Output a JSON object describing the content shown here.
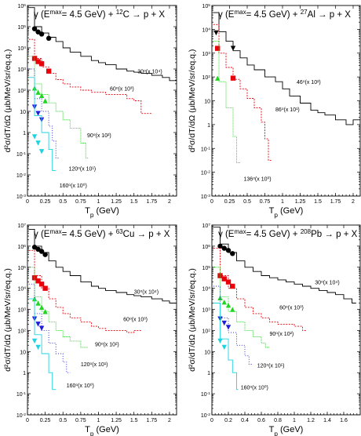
{
  "colors": {
    "c30": "#000000",
    "c60": "#e8000b",
    "c90": "#21d621",
    "c120": "#1f1fd9",
    "c160": "#1fd3e0",
    "frame": "#000000"
  },
  "chart_data": [
    {
      "type": "line",
      "title_prefix": "γ (E",
      "title_sup1": "max",
      "title_mid": "= 4.5 GeV) + ",
      "title_sup2": "12",
      "title_suffix": "C → p + X",
      "xlabel_main": "T",
      "xlabel_sub": "p",
      "xlabel_unit": " (GeV)",
      "ylabel": "d²σ/dT/dΩ (μb/MeV/sr/eq.q.)",
      "xlim": [
        0,
        2.1
      ],
      "ylim_exp": [
        -3,
        6
      ],
      "log_y": true,
      "xticks": [
        "0",
        "0.25",
        "0.5",
        "0.75",
        "1",
        "1.25",
        "1.5",
        "1.75",
        "2"
      ],
      "series": [
        {
          "name": "30",
          "scale": "(x 10⁴)",
          "color_key": "c30",
          "dash": "",
          "ann_x": 1.55,
          "ann_y": 2.8,
          "x": [
            0.02,
            0.1,
            0.2,
            0.3,
            0.4,
            0.5,
            0.6,
            0.75,
            0.9,
            1.0,
            1.1,
            1.25,
            1.4,
            1.5,
            1.6,
            1.75,
            1.9,
            2.0,
            2.1
          ],
          "y": [
            5.9,
            5.0,
            4.7,
            4.5,
            4.3,
            4.0,
            3.8,
            3.6,
            3.4,
            3.3,
            3.2,
            3.0,
            2.9,
            2.85,
            2.8,
            2.7,
            2.6,
            2.45,
            2.3
          ],
          "mx": [
            0.1,
            0.15,
            0.2,
            0.3
          ],
          "my": [
            4.9,
            4.75,
            4.65,
            4.45
          ],
          "marker": "circle"
        },
        {
          "name": "60",
          "scale": "(x 10³)",
          "color_key": "c60",
          "dash": "2,1.5",
          "ann_x": 1.16,
          "ann_y": 1.98,
          "x": [
            0.02,
            0.1,
            0.2,
            0.3,
            0.4,
            0.5,
            0.6,
            0.75,
            0.9,
            1.0,
            1.1,
            1.25,
            1.4,
            1.5,
            1.6,
            1.75
          ],
          "y": [
            4.4,
            3.5,
            3.1,
            2.8,
            2.5,
            2.3,
            2.15,
            2.0,
            1.9,
            1.9,
            1.8,
            1.8,
            1.6,
            1.5,
            0.9,
            0.4
          ],
          "mx": [
            0.1,
            0.15,
            0.2,
            0.3
          ],
          "my": [
            3.5,
            3.35,
            3.25,
            2.9
          ],
          "marker": "square"
        },
        {
          "name": "90",
          "scale": "(x 10²)",
          "color_key": "c90",
          "dash": "1,1",
          "ann_x": 0.84,
          "ann_y": -0.22,
          "x": [
            0.02,
            0.1,
            0.2,
            0.3,
            0.4,
            0.5,
            0.6,
            0.75,
            0.82,
            0.86
          ],
          "y": [
            3.6,
            2.3,
            1.8,
            1.4,
            1.0,
            0.6,
            0.2,
            -0.5,
            -1.2,
            -2.0
          ],
          "mx": [
            0.1,
            0.15,
            0.2,
            0.25
          ],
          "my": [
            2.1,
            1.9,
            1.75,
            1.5
          ],
          "marker": "triangle"
        },
        {
          "name": "120",
          "scale": "(x 10¹)",
          "color_key": "c120",
          "dash": "1,2",
          "ann_x": 0.58,
          "ann_y": -1.8,
          "x": [
            0.02,
            0.1,
            0.2,
            0.3,
            0.35,
            0.4,
            0.45
          ],
          "y": [
            3.0,
            1.6,
            1.0,
            0.3,
            -0.4,
            -1.2,
            -2.2
          ],
          "mx": [
            0.1,
            0.15,
            0.2
          ],
          "my": [
            1.2,
            0.9,
            0.6
          ],
          "marker": "triangledown"
        },
        {
          "name": "160",
          "scale": "(x 10⁰)",
          "color_key": "c160",
          "dash": "",
          "ann_x": 0.45,
          "ann_y": -2.6,
          "x": [
            0.02,
            0.1,
            0.2,
            0.3,
            0.35,
            0.4
          ],
          "y": [
            2.6,
            0.8,
            0.0,
            -0.8,
            -1.8,
            -2.9
          ],
          "mx": [
            0.1,
            0.15,
            0.2
          ],
          "my": [
            -0.2,
            -0.5,
            -0.9
          ],
          "marker": "triangledown"
        }
      ]
    },
    {
      "type": "line",
      "title_prefix": "γ (E",
      "title_sup1": "max",
      "title_mid": "= 4.5 GeV) + ",
      "title_sup2": "27",
      "title_suffix": "Al → p + X",
      "xlabel_main": "T",
      "xlabel_sub": "p",
      "xlabel_unit": " (GeV)",
      "ylabel": "d²σ/dT/dΩ (μb/MeV/sr/eq.q.)",
      "xlim": [
        0,
        2.1
      ],
      "ylim_exp": [
        -3,
        5
      ],
      "log_y": true,
      "xticks": [
        "0",
        "0.25",
        "0.5",
        "0.75",
        "1",
        "1.25",
        "1.5",
        "1.75",
        "2"
      ],
      "series": [
        {
          "name": "46",
          "scale": "(x 10²)",
          "color_key": "c30",
          "dash": "",
          "ann_x": 1.2,
          "ann_y": 1.7,
          "x": [
            0.02,
            0.1,
            0.2,
            0.3,
            0.4,
            0.5,
            0.6,
            0.75,
            0.9,
            1.0,
            1.1,
            1.25,
            1.4,
            1.5,
            1.6,
            1.75,
            1.9,
            2.0,
            2.1
          ],
          "y": [
            4.7,
            3.9,
            3.5,
            3.1,
            2.8,
            2.5,
            2.3,
            2.0,
            1.8,
            1.5,
            1.2,
            0.9,
            0.6,
            0.5,
            0.4,
            0.2,
            0.0,
            0.2,
            0.3
          ],
          "mx": [
            0.06,
            0.3
          ],
          "my": [
            3.85,
            3.2
          ],
          "marker": "triangledown"
        },
        {
          "name": "86",
          "scale": "(x 10¹)",
          "color_key": "c60",
          "dash": "2,1.5",
          "ann_x": 0.9,
          "ann_y": 0.55,
          "x": [
            0.02,
            0.1,
            0.2,
            0.3,
            0.4,
            0.5,
            0.6,
            0.7,
            0.75,
            0.8,
            0.85
          ],
          "y": [
            4.2,
            3.0,
            2.4,
            1.9,
            1.5,
            1.1,
            0.7,
            0.1,
            -0.6,
            -1.5,
            -3.0
          ],
          "mx": [
            0.08,
            0.3
          ],
          "my": [
            3.2,
            1.95
          ],
          "marker": "square"
        },
        {
          "name": "136",
          "scale": "(x 10⁰)",
          "color_key": "c90",
          "dash": "1,1",
          "ann_x": 0.45,
          "ann_y": -2.35,
          "x": [
            0.02,
            0.1,
            0.2,
            0.3,
            0.35,
            0.4
          ],
          "y": [
            3.5,
            1.8,
            0.7,
            -0.5,
            -1.6,
            -3.0
          ],
          "mx": [
            0.08
          ],
          "my": [
            1.95
          ],
          "marker": "triangle"
        }
      ]
    },
    {
      "type": "line",
      "title_prefix": "γ (E",
      "title_sup1": "max",
      "title_mid": "= 4.5 GeV) + ",
      "title_sup2": "63",
      "title_suffix": "Cu → p + X",
      "xlabel_main": "T",
      "xlabel_sub": "p",
      "xlabel_unit": " (GeV)",
      "ylabel": "d²σ/dT/dΩ (μb/MeV/sr/eq.q.)",
      "xlim": [
        0,
        2.1
      ],
      "ylim_exp": [
        -2,
        7
      ],
      "log_y": true,
      "xticks": [
        "0",
        "0.25",
        "0.5",
        "0.75",
        "1",
        "1.25",
        "1.5",
        "1.75",
        "2"
      ],
      "series": [
        {
          "name": "30",
          "scale": "(x 10⁴)",
          "color_key": "c30",
          "dash": "",
          "ann_x": 1.5,
          "ann_y": 3.75,
          "x": [
            0.02,
            0.1,
            0.2,
            0.3,
            0.4,
            0.5,
            0.6,
            0.75,
            0.9,
            1.0,
            1.1,
            1.25,
            1.4,
            1.5,
            1.6,
            1.75,
            1.9,
            2.0,
            2.1
          ],
          "y": [
            6.8,
            6.0,
            5.7,
            5.3,
            5.0,
            4.8,
            4.6,
            4.3,
            4.1,
            4.0,
            3.9,
            3.8,
            3.7,
            3.65,
            3.6,
            3.5,
            3.4,
            3.3,
            3.2
          ],
          "mx": [
            0.1,
            0.15,
            0.2,
            0.25
          ],
          "my": [
            5.95,
            5.85,
            5.75,
            5.6
          ],
          "marker": "circle"
        },
        {
          "name": "60",
          "scale": "(x 10³)",
          "color_key": "c60",
          "dash": "2,1.5",
          "ann_x": 1.35,
          "ann_y": 2.45,
          "x": [
            0.02,
            0.1,
            0.2,
            0.3,
            0.4,
            0.5,
            0.6,
            0.75,
            0.9,
            1.0,
            1.1,
            1.25,
            1.4,
            1.5,
            1.6
          ],
          "y": [
            5.8,
            4.6,
            4.0,
            3.5,
            3.1,
            2.8,
            2.6,
            2.4,
            2.2,
            2.1,
            2.0,
            2.0,
            1.9,
            2.0,
            2.0
          ],
          "mx": [
            0.1,
            0.15,
            0.2,
            0.25
          ],
          "my": [
            4.5,
            4.35,
            4.2,
            4.0
          ],
          "marker": "square"
        },
        {
          "name": "90",
          "scale": "(x 10²)",
          "color_key": "c90",
          "dash": "1,1",
          "ann_x": 0.95,
          "ann_y": 1.25,
          "x": [
            0.02,
            0.1,
            0.2,
            0.3,
            0.4,
            0.5,
            0.6,
            0.75,
            0.85
          ],
          "y": [
            5.0,
            3.6,
            2.9,
            2.4,
            2.0,
            1.7,
            1.5,
            1.2,
            0.6
          ],
          "mx": [
            0.1,
            0.15,
            0.2,
            0.25
          ],
          "my": [
            3.5,
            3.3,
            3.1,
            2.9
          ],
          "marker": "triangle"
        },
        {
          "name": "120",
          "scale": "(x 10¹)",
          "color_key": "c120",
          "dash": "1,2",
          "ann_x": 0.75,
          "ann_y": 0.3,
          "x": [
            0.02,
            0.1,
            0.2,
            0.3,
            0.4,
            0.5,
            0.55,
            0.6
          ],
          "y": [
            4.2,
            2.8,
            2.0,
            1.4,
            0.9,
            0.5,
            0.0,
            -0.3
          ],
          "mx": [
            0.1,
            0.15,
            0.2
          ],
          "my": [
            2.55,
            2.3,
            2.1
          ],
          "marker": "triangledown"
        },
        {
          "name": "160",
          "scale": "(x 10⁰)",
          "color_key": "c160",
          "dash": "",
          "ann_x": 0.55,
          "ann_y": -0.7,
          "x": [
            0.02,
            0.1,
            0.2,
            0.3,
            0.35,
            0.4
          ],
          "y": [
            3.5,
            1.8,
            0.9,
            0.0,
            -0.8,
            -1.8
          ],
          "mx": [
            0.1,
            0.15
          ],
          "my": [
            1.5,
            1.2
          ],
          "marker": "triangledown"
        }
      ]
    },
    {
      "type": "line",
      "title_prefix": "γ (E",
      "title_sup1": "max",
      "title_mid": "= 4.5 GeV) + ",
      "title_sup2": "208",
      "title_suffix": "Pb → p + X",
      "xlabel_main": "T",
      "xlabel_sub": "p",
      "xlabel_unit": " (GeV)",
      "ylabel": "d²σ/dT/dΩ (μb/MeV/sr/eq.q.)",
      "xlim": [
        0,
        1.8
      ],
      "ylim_exp": [
        -2,
        7
      ],
      "log_y": true,
      "xticks": [
        "0",
        "0.2",
        "0.4",
        "0.6",
        "0.8",
        "1",
        "1.2",
        "1.4",
        "1.6"
      ],
      "series": [
        {
          "name": "30",
          "scale": "(x 10⁴)",
          "color_key": "c30",
          "dash": "",
          "ann_x": 1.25,
          "ann_y": 4.2,
          "x": [
            0.02,
            0.1,
            0.2,
            0.3,
            0.4,
            0.5,
            0.6,
            0.7,
            0.8,
            0.9,
            1.0,
            1.1,
            1.2,
            1.3,
            1.4,
            1.5,
            1.6,
            1.7,
            1.75
          ],
          "y": [
            6.9,
            6.1,
            5.7,
            5.3,
            5.0,
            4.8,
            4.6,
            4.5,
            4.4,
            4.3,
            4.2,
            4.1,
            4.0,
            3.9,
            3.8,
            3.7,
            3.5,
            3.3,
            3.1
          ],
          "mx": [
            0.1,
            0.15,
            0.2,
            0.25
          ],
          "my": [
            6.0,
            5.9,
            5.8,
            5.65
          ],
          "marker": "circle"
        },
        {
          "name": "60",
          "scale": "(x 10³)",
          "color_key": "c60",
          "dash": "2,1.5",
          "ann_x": 0.82,
          "ann_y": 3.0,
          "x": [
            0.02,
            0.1,
            0.2,
            0.3,
            0.4,
            0.5,
            0.6,
            0.7,
            0.8,
            0.9,
            1.0,
            1.1,
            1.15
          ],
          "y": [
            5.9,
            4.6,
            4.0,
            3.5,
            3.1,
            2.8,
            2.6,
            2.4,
            2.3,
            2.3,
            2.2,
            2.0,
            2.2
          ],
          "mx": [
            0.1,
            0.15,
            0.2,
            0.25
          ],
          "my": [
            4.6,
            4.45,
            4.3,
            4.1
          ],
          "marker": "square"
        },
        {
          "name": "90",
          "scale": "(x 10²)",
          "color_key": "c90",
          "dash": "1,1",
          "ann_x": 0.7,
          "ann_y": 1.75,
          "x": [
            0.02,
            0.1,
            0.2,
            0.3,
            0.4,
            0.5,
            0.6,
            0.65,
            0.7
          ],
          "y": [
            5.0,
            3.6,
            2.9,
            2.4,
            2.0,
            1.7,
            1.4,
            1.2,
            0.9
          ],
          "mx": [
            0.1,
            0.15,
            0.2,
            0.25
          ],
          "my": [
            3.55,
            3.35,
            3.2,
            3.0
          ],
          "marker": "triangle"
        },
        {
          "name": "120",
          "scale": "(x 10¹)",
          "color_key": "c120",
          "dash": "1,2",
          "ann_x": 0.55,
          "ann_y": 0.25,
          "x": [
            0.02,
            0.1,
            0.2,
            0.3,
            0.4,
            0.45,
            0.5
          ],
          "y": [
            4.1,
            2.6,
            1.9,
            1.3,
            0.8,
            0.4,
            0.0
          ],
          "mx": [
            0.1,
            0.15,
            0.2
          ],
          "my": [
            2.55,
            2.35,
            2.15
          ],
          "marker": "triangledown"
        },
        {
          "name": "160",
          "scale": "(x 10⁰)",
          "color_key": "c160",
          "dash": "",
          "ann_x": 0.35,
          "ann_y": -0.8,
          "x": [
            0.02,
            0.1,
            0.2,
            0.25,
            0.3,
            0.32
          ],
          "y": [
            3.3,
            1.6,
            0.6,
            0.0,
            -0.8,
            -1.8
          ],
          "mx": [
            0.1,
            0.15
          ],
          "my": [
            1.5,
            1.2
          ],
          "marker": "triangledown"
        }
      ]
    }
  ]
}
